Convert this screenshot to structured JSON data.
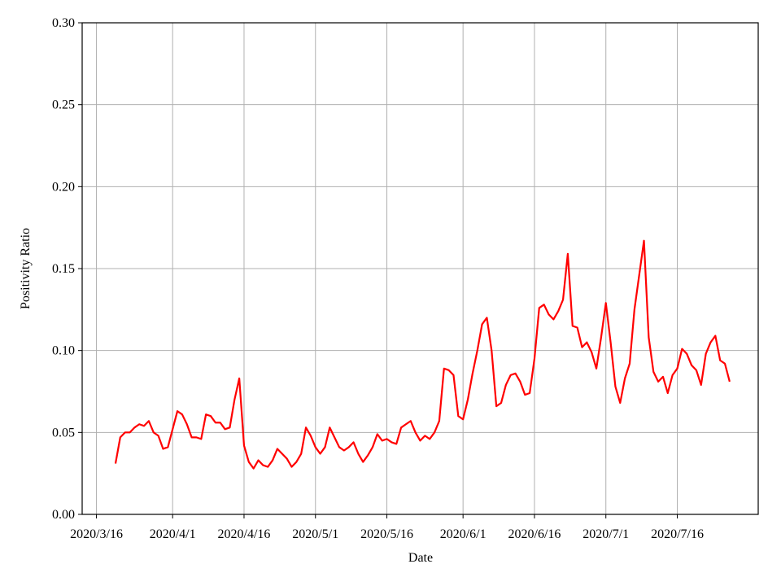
{
  "chart_data": {
    "type": "line",
    "xlabel": "Date",
    "ylabel": "Positivity Ratio",
    "x": [
      "2020/3/20",
      "2020/3/21",
      "2020/3/22",
      "2020/3/23",
      "2020/3/24",
      "2020/3/25",
      "2020/3/26",
      "2020/3/27",
      "2020/3/28",
      "2020/3/29",
      "2020/3/30",
      "2020/3/31",
      "2020/4/1",
      "2020/4/2",
      "2020/4/3",
      "2020/4/4",
      "2020/4/5",
      "2020/4/6",
      "2020/4/7",
      "2020/4/8",
      "2020/4/9",
      "2020/4/10",
      "2020/4/11",
      "2020/4/12",
      "2020/4/13",
      "2020/4/14",
      "2020/4/15",
      "2020/4/16",
      "2020/4/17",
      "2020/4/18",
      "2020/4/19",
      "2020/4/20",
      "2020/4/21",
      "2020/4/22",
      "2020/4/23",
      "2020/4/24",
      "2020/4/25",
      "2020/4/26",
      "2020/4/27",
      "2020/4/28",
      "2020/4/29",
      "2020/4/30",
      "2020/5/1",
      "2020/5/2",
      "2020/5/3",
      "2020/5/4",
      "2020/5/5",
      "2020/5/6",
      "2020/5/7",
      "2020/5/8",
      "2020/5/9",
      "2020/5/10",
      "2020/5/11",
      "2020/5/12",
      "2020/5/13",
      "2020/5/14",
      "2020/5/15",
      "2020/5/16",
      "2020/5/17",
      "2020/5/18",
      "2020/5/19",
      "2020/5/20",
      "2020/5/21",
      "2020/5/22",
      "2020/5/23",
      "2020/5/24",
      "2020/5/25",
      "2020/5/26",
      "2020/5/27",
      "2020/5/28",
      "2020/5/29",
      "2020/5/30",
      "2020/5/31",
      "2020/6/1",
      "2020/6/2",
      "2020/6/3",
      "2020/6/4",
      "2020/6/5",
      "2020/6/6",
      "2020/6/7",
      "2020/6/8",
      "2020/6/9",
      "2020/6/10",
      "2020/6/11",
      "2020/6/12",
      "2020/6/13",
      "2020/6/14",
      "2020/6/15",
      "2020/6/16",
      "2020/6/17",
      "2020/6/18",
      "2020/6/19",
      "2020/6/20",
      "2020/6/21",
      "2020/6/22",
      "2020/6/23",
      "2020/6/24",
      "2020/6/25",
      "2020/6/26",
      "2020/6/27",
      "2020/6/28",
      "2020/6/29",
      "2020/6/30",
      "2020/7/1",
      "2020/7/2",
      "2020/7/3",
      "2020/7/4",
      "2020/7/5",
      "2020/7/6",
      "2020/7/7",
      "2020/7/8",
      "2020/7/9",
      "2020/7/10",
      "2020/7/11",
      "2020/7/12",
      "2020/7/13",
      "2020/7/14",
      "2020/7/15",
      "2020/7/16",
      "2020/7/17",
      "2020/7/18",
      "2020/7/19",
      "2020/7/20",
      "2020/7/21",
      "2020/7/22",
      "2020/7/23",
      "2020/7/24",
      "2020/7/25",
      "2020/7/26",
      "2020/7/27"
    ],
    "values": [
      0.031,
      0.047,
      0.05,
      0.05,
      0.053,
      0.055,
      0.054,
      0.057,
      0.05,
      0.048,
      0.04,
      0.041,
      0.052,
      0.063,
      0.061,
      0.055,
      0.047,
      0.047,
      0.046,
      0.061,
      0.06,
      0.056,
      0.056,
      0.052,
      0.053,
      0.07,
      0.083,
      0.042,
      0.032,
      0.028,
      0.033,
      0.03,
      0.029,
      0.033,
      0.04,
      0.037,
      0.034,
      0.029,
      0.032,
      0.037,
      0.053,
      0.048,
      0.041,
      0.037,
      0.041,
      0.053,
      0.047,
      0.041,
      0.039,
      0.041,
      0.044,
      0.037,
      0.032,
      0.036,
      0.041,
      0.049,
      0.045,
      0.046,
      0.044,
      0.043,
      0.053,
      0.055,
      0.057,
      0.05,
      0.045,
      0.048,
      0.046,
      0.05,
      0.057,
      0.089,
      0.088,
      0.085,
      0.06,
      0.058,
      0.07,
      0.086,
      0.1,
      0.116,
      0.12,
      0.1,
      0.066,
      0.068,
      0.079,
      0.085,
      0.086,
      0.081,
      0.073,
      0.074,
      0.095,
      0.126,
      0.128,
      0.122,
      0.119,
      0.124,
      0.131,
      0.159,
      0.115,
      0.114,
      0.102,
      0.105,
      0.099,
      0.089,
      0.108,
      0.129,
      0.105,
      0.078,
      0.068,
      0.083,
      0.092,
      0.125,
      0.146,
      0.167,
      0.108,
      0.087,
      0.081,
      0.084,
      0.074,
      0.085,
      0.089,
      0.101,
      0.098,
      0.091,
      0.088,
      0.079,
      0.098,
      0.105,
      0.109,
      0.094,
      0.092,
      0.081
    ],
    "color": "#ff0000",
    "xlim": [
      "2020/3/13",
      "2020/8/2"
    ],
    "xticks": [
      "2020/3/16",
      "2020/4/1",
      "2020/4/16",
      "2020/5/1",
      "2020/5/16",
      "2020/6/1",
      "2020/6/16",
      "2020/7/1",
      "2020/7/16"
    ],
    "ylim": [
      0,
      0.3
    ],
    "yticks": [
      {
        "value": 0,
        "label": "0.00"
      },
      0.05,
      {
        "value": 0.1,
        "label": "0.10"
      },
      0.15,
      {
        "value": 0.2,
        "label": "0.20"
      },
      0.25,
      {
        "value": 0.3,
        "label": "0.30"
      }
    ],
    "grid": true
  }
}
